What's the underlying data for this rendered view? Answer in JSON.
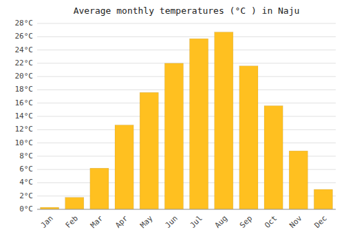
{
  "chart_data": {
    "type": "bar",
    "title": "Average monthly temperatures (°C ) in Naju",
    "categories": [
      "Jan",
      "Feb",
      "Mar",
      "Apr",
      "May",
      "Jun",
      "Jul",
      "Aug",
      "Sep",
      "Oct",
      "Nov",
      "Dec"
    ],
    "values": [
      0.3,
      1.8,
      6.2,
      12.7,
      17.6,
      22.0,
      25.7,
      26.7,
      21.6,
      15.6,
      8.8,
      3.0
    ],
    "color": "#FFC020",
    "ylim": [
      0,
      28
    ],
    "yticks": [
      {
        "value": 0,
        "label": "0°C"
      },
      {
        "value": 2,
        "label": "2°C"
      },
      {
        "value": 4,
        "label": "4°C"
      },
      {
        "value": 6,
        "label": "6°C"
      },
      {
        "value": 8,
        "label": "8°C"
      },
      {
        "value": 10,
        "label": "10°C"
      },
      {
        "value": 12,
        "label": "12°C"
      },
      {
        "value": 14,
        "label": "14°C"
      },
      {
        "value": 16,
        "label": "16°C"
      },
      {
        "value": 18,
        "label": "18°C"
      },
      {
        "value": 20,
        "label": "20°C"
      },
      {
        "value": 22,
        "label": "22°C"
      },
      {
        "value": 24,
        "label": "24°C"
      },
      {
        "value": 26,
        "label": "26°C"
      },
      {
        "value": 28,
        "label": "28°C"
      }
    ],
    "grid": true
  }
}
